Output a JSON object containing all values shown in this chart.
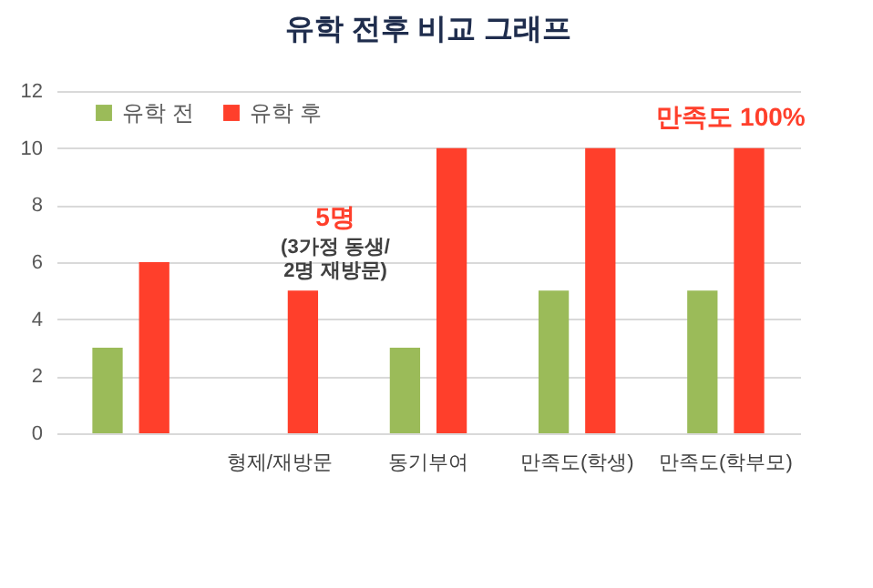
{
  "chart_data": {
    "type": "bar",
    "title": "유학 전후 비교 그래프",
    "categories": [
      null,
      "형제/재방문",
      "동기부여",
      "만족도(학생)",
      "만족도(학부모)"
    ],
    "series": [
      {
        "name": "유학 전",
        "color": "#9bbb59",
        "values": [
          3,
          null,
          3,
          5,
          5
        ]
      },
      {
        "name": "유학 후",
        "color": "#ff3f2b",
        "values": [
          6,
          5,
          10,
          10,
          10
        ]
      }
    ],
    "ylim": [
      0,
      12
    ],
    "yticks": [
      0,
      2,
      4,
      6,
      8,
      10,
      12
    ],
    "grid": "y",
    "legend": "top left",
    "annotations": [
      "5명",
      "(3가정 동생/",
      "2명 재방문)",
      "만족도 100%"
    ]
  }
}
